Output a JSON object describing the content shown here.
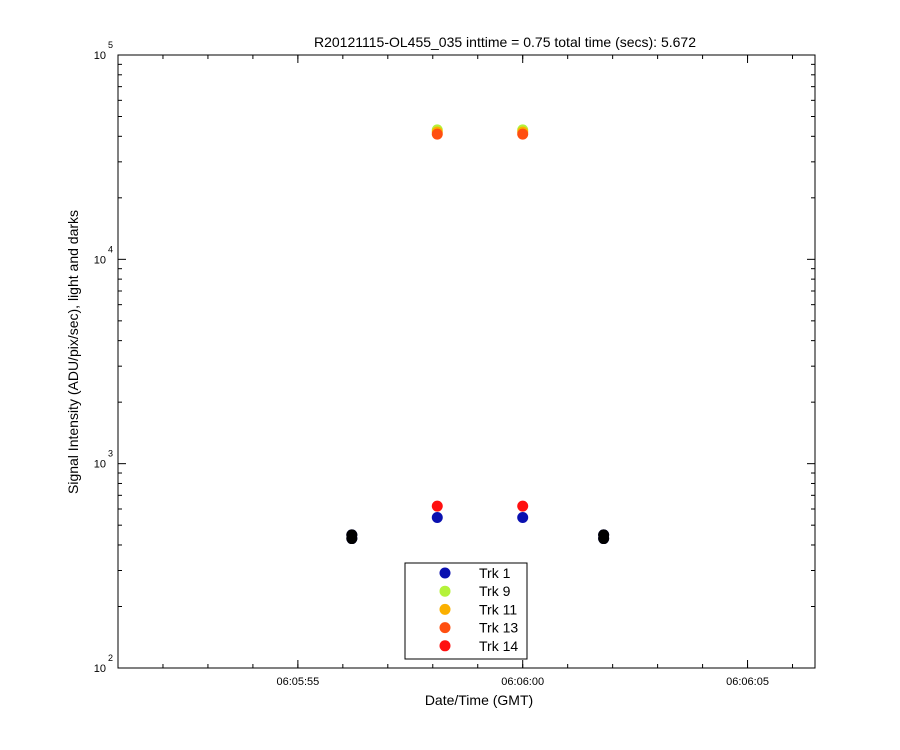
{
  "chart_data": {
    "type": "scatter",
    "title": "R20121115-OL455_035 inttime = 0.75 total time (secs): 5.672",
    "xlabel": "Date/Time (GMT)",
    "ylabel": "Signal Intensity (ADU/pix/sec), light and darks",
    "yscale": "log",
    "ylim": [
      100,
      100000
    ],
    "xlim": [
      "06:05:51",
      "06:06:06.5"
    ],
    "x_ticks": [
      "06:05:55",
      "06:06:00",
      "06:06:05"
    ],
    "y_ticks": [
      {
        "value": 100,
        "base": "10",
        "exp": "2"
      },
      {
        "value": 1000,
        "base": "10",
        "exp": "3"
      },
      {
        "value": 10000,
        "base": "10",
        "exp": "4"
      },
      {
        "value": 100000,
        "base": "10",
        "exp": "5"
      }
    ],
    "grid": false,
    "legend_position": "bottom-center",
    "series": [
      {
        "name": "Trk 1",
        "color": "#0a10b0",
        "points": [
          [
            "06:05:56.2",
            430
          ],
          [
            "06:05:56.2",
            448
          ],
          [
            "06:05:58.1",
            545
          ],
          [
            "06:06:00.0",
            545
          ],
          [
            "06:06:01.8",
            430
          ],
          [
            "06:06:01.8",
            448
          ]
        ]
      },
      {
        "name": "Trk 9",
        "color": "#b4f23a",
        "points": [
          [
            "06:05:58.1",
            43000
          ],
          [
            "06:06:00.0",
            43000
          ]
        ]
      },
      {
        "name": "Trk 11",
        "color": "#fbb000",
        "points": [
          [
            "06:05:58.1",
            42000
          ],
          [
            "06:06:00.0",
            42000
          ]
        ]
      },
      {
        "name": "Trk 13",
        "color": "#ff4f10",
        "points": [
          [
            "06:05:58.1",
            41000
          ],
          [
            "06:06:00.0",
            41000
          ]
        ]
      },
      {
        "name": "Trk 14",
        "color": "#ff1010",
        "points": [
          [
            "06:05:58.1",
            620
          ],
          [
            "06:06:00.0",
            620
          ]
        ]
      }
    ],
    "dark_points": {
      "color": "#000000",
      "points": [
        [
          "06:05:56.2",
          430
        ],
        [
          "06:05:56.2",
          448
        ],
        [
          "06:06:01.8",
          430
        ],
        [
          "06:06:01.8",
          448
        ]
      ]
    }
  }
}
